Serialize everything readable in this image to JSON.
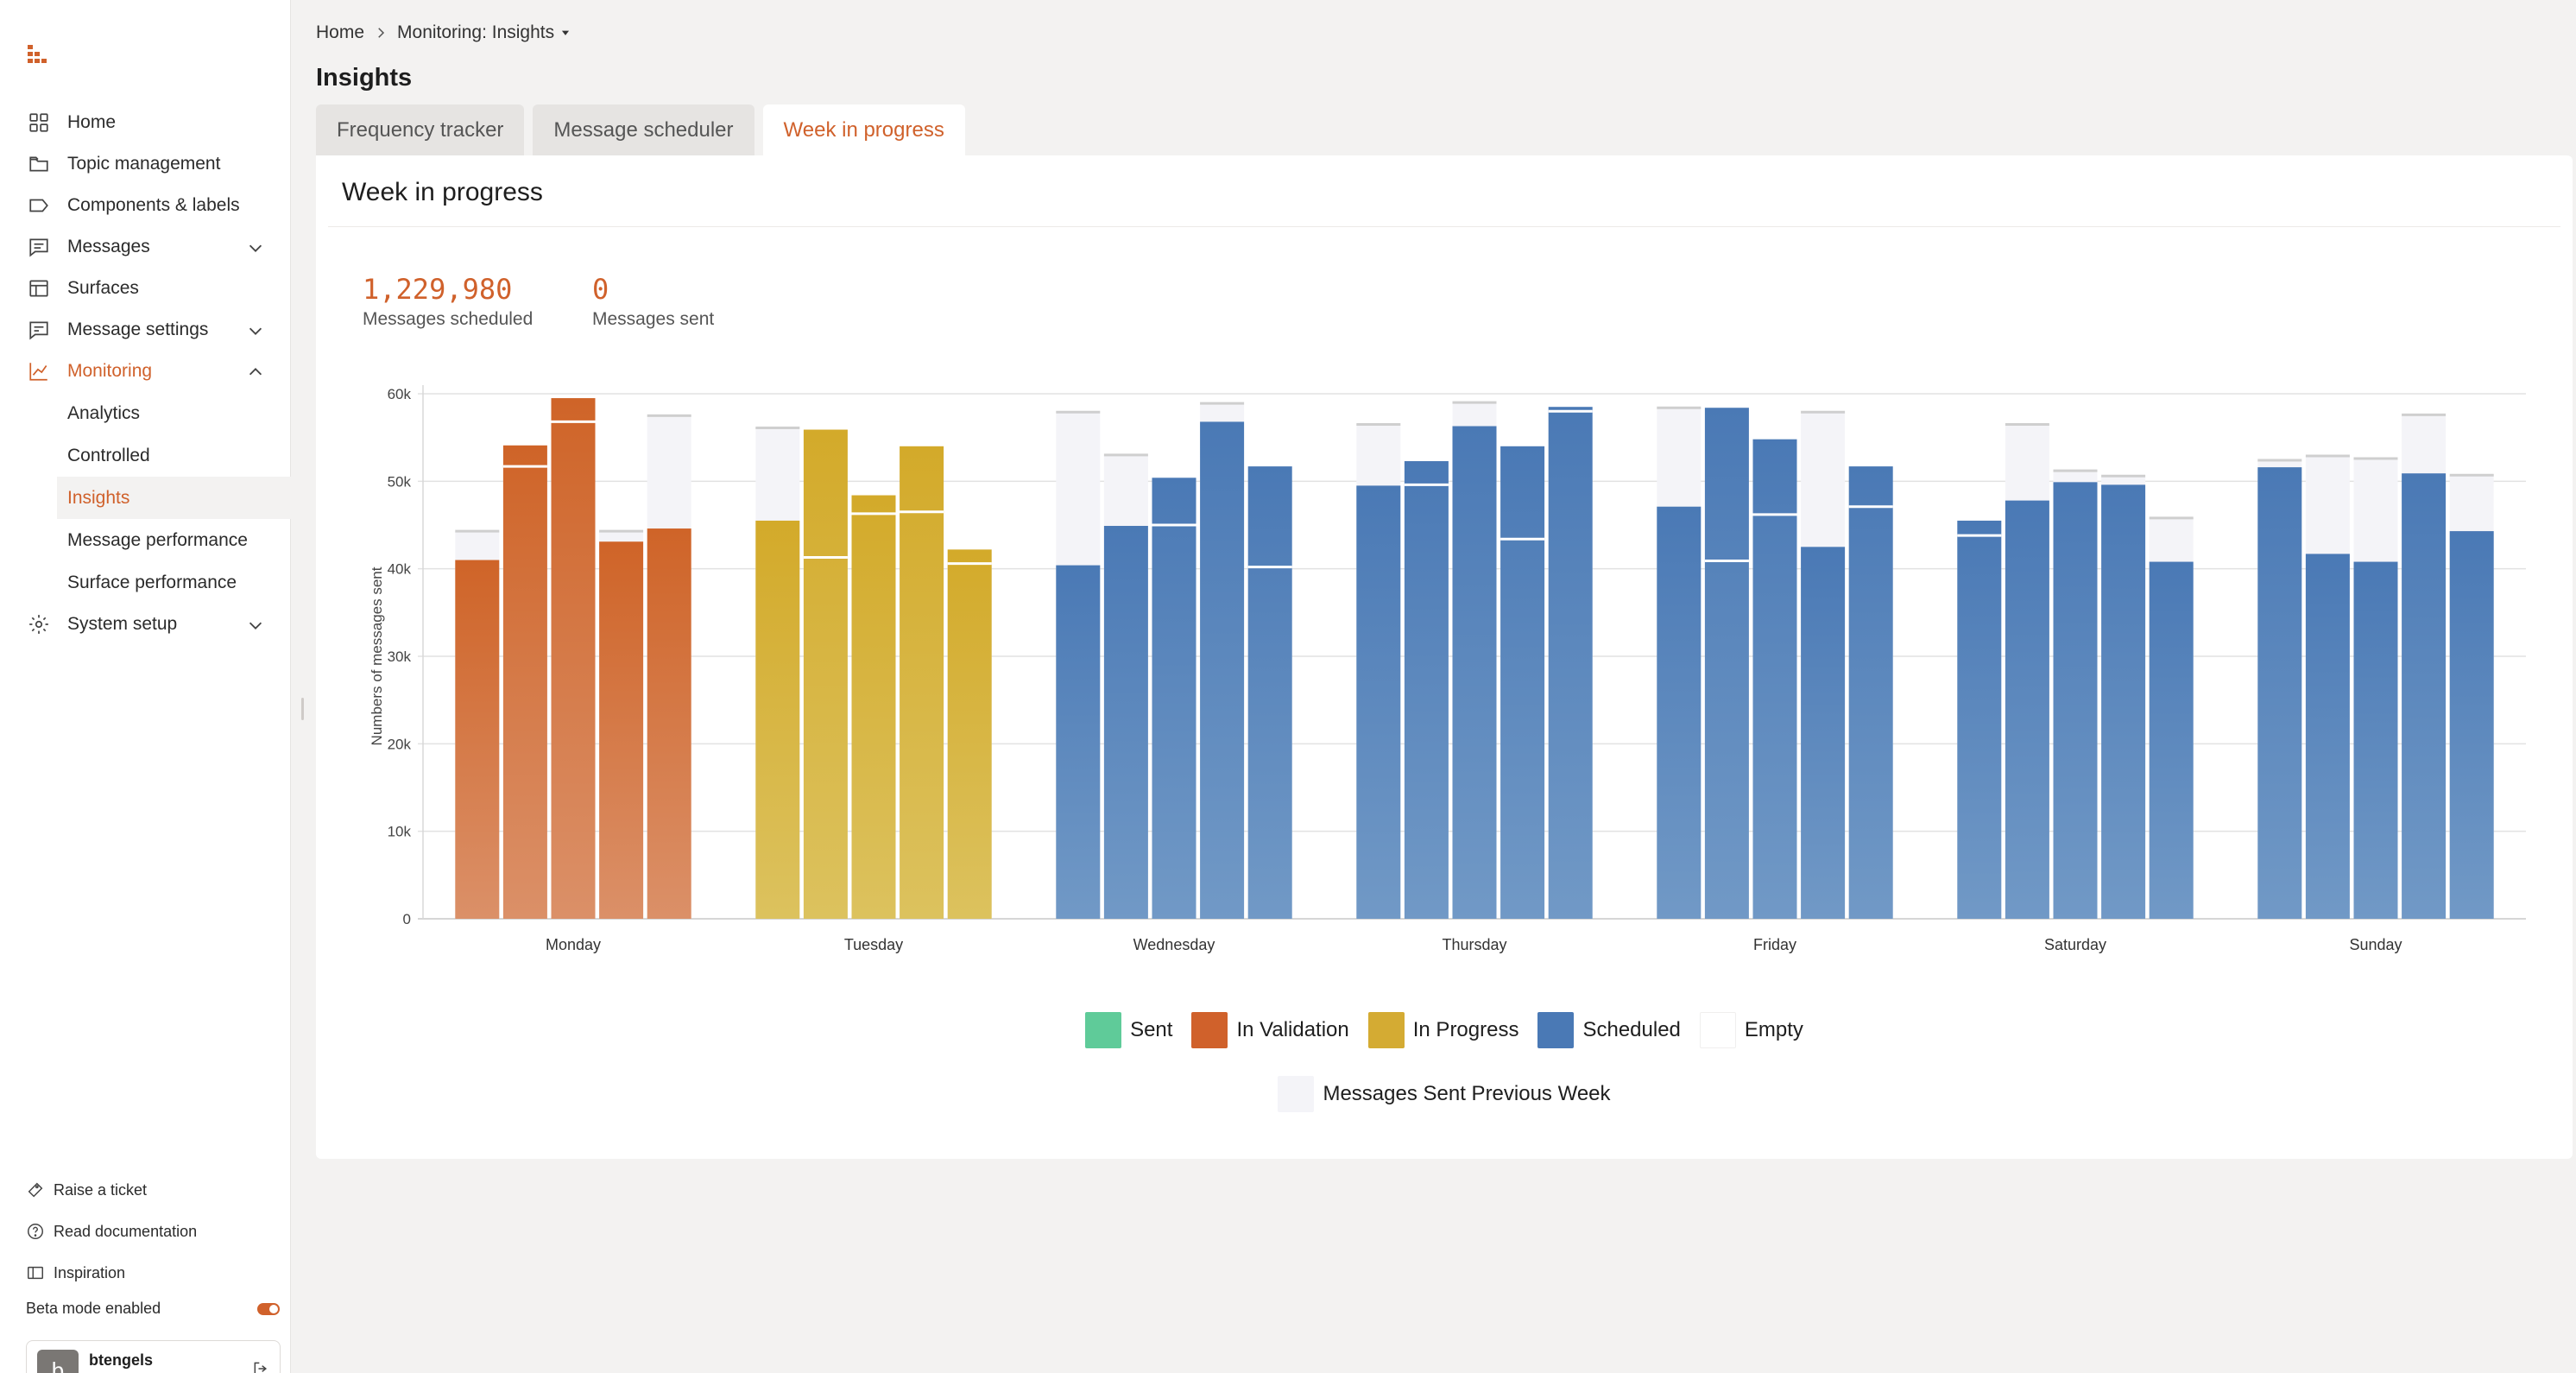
{
  "sidebar": {
    "nav": [
      {
        "label": "Home",
        "icon": "grid-icon"
      },
      {
        "label": "Topic management",
        "icon": "folder-icon"
      },
      {
        "label": "Components & labels",
        "icon": "label-icon"
      },
      {
        "label": "Messages",
        "icon": "message-icon",
        "expandable": true
      },
      {
        "label": "Surfaces",
        "icon": "layout-icon"
      },
      {
        "label": "Message settings",
        "icon": "message-settings-icon",
        "expandable": true
      },
      {
        "label": "Monitoring",
        "icon": "chart-line-icon",
        "expanded": true
      },
      {
        "label": "System setup",
        "icon": "gear-icon",
        "expandable": true
      }
    ],
    "monitoring_sub": [
      "Analytics",
      "Controlled",
      "Insights",
      "Message performance",
      "Surface performance"
    ],
    "footer": {
      "raise_ticket": "Raise a ticket",
      "read_docs": "Read documentation",
      "inspiration": "Inspiration",
      "beta": "Beta mode enabled",
      "user_name": "btengels",
      "avatar_letter": "b"
    }
  },
  "breadcrumb": {
    "home": "Home",
    "current": "Monitoring: Insights"
  },
  "page_title": "Insights",
  "tabs": [
    "Frequency tracker",
    "Message scheduler",
    "Week in progress"
  ],
  "panel": {
    "title": "Week in progress",
    "stats": [
      {
        "value": "1,229,980",
        "label": "Messages scheduled"
      },
      {
        "value": "0",
        "label": "Messages sent"
      }
    ]
  },
  "colors": {
    "accent": "#d0612b",
    "sent": "#5fcb99",
    "in_validation": "#d0612b",
    "in_progress": "#d4ab33",
    "scheduled": "#4a79b5",
    "empty": "#ffffff",
    "prev_week": "#f4f4f8"
  },
  "chart_data": {
    "type": "bar",
    "ylabel": "Numbers of messages sent",
    "ylim": [
      0,
      60000
    ],
    "yticks": [
      "0",
      "10k",
      "20k",
      "30k",
      "40k",
      "50k",
      "60k"
    ],
    "categories": [
      "Monday",
      "Tuesday",
      "Wednesday",
      "Thursday",
      "Friday",
      "Saturday",
      "Sunday"
    ],
    "bars_per_category": 5,
    "bars": [
      {
        "day": "Monday",
        "status": "in_validation",
        "value": 41000,
        "prev_week": 44300
      },
      {
        "day": "Monday",
        "status": "in_validation",
        "value": 54100,
        "prev_week": 51700
      },
      {
        "day": "Monday",
        "status": "in_validation",
        "value": 59500,
        "prev_week": 56800
      },
      {
        "day": "Monday",
        "status": "in_validation",
        "value": 43100,
        "prev_week": 44300
      },
      {
        "day": "Monday",
        "status": "in_validation",
        "value": 44600,
        "prev_week": 57500
      },
      {
        "day": "Tuesday",
        "status": "in_progress",
        "value": 45500,
        "prev_week": 56100
      },
      {
        "day": "Tuesday",
        "status": "in_progress",
        "value": 55900,
        "prev_week": 41300
      },
      {
        "day": "Tuesday",
        "status": "in_progress",
        "value": 48400,
        "prev_week": 46300
      },
      {
        "day": "Tuesday",
        "status": "in_progress",
        "value": 54000,
        "prev_week": 46500
      },
      {
        "day": "Tuesday",
        "status": "in_progress",
        "value": 42200,
        "prev_week": 40600
      },
      {
        "day": "Wednesday",
        "status": "scheduled",
        "value": 40400,
        "prev_week": 57900
      },
      {
        "day": "Wednesday",
        "status": "scheduled",
        "value": 44900,
        "prev_week": 53000
      },
      {
        "day": "Wednesday",
        "status": "scheduled",
        "value": 50400,
        "prev_week": 45000
      },
      {
        "day": "Wednesday",
        "status": "scheduled",
        "value": 56800,
        "prev_week": 58900
      },
      {
        "day": "Wednesday",
        "status": "scheduled",
        "value": 51700,
        "prev_week": 40200
      },
      {
        "day": "Thursday",
        "status": "scheduled",
        "value": 49500,
        "prev_week": 56500
      },
      {
        "day": "Thursday",
        "status": "scheduled",
        "value": 52300,
        "prev_week": 49600
      },
      {
        "day": "Thursday",
        "status": "scheduled",
        "value": 56300,
        "prev_week": 59000
      },
      {
        "day": "Thursday",
        "status": "scheduled",
        "value": 54000,
        "prev_week": 43400
      },
      {
        "day": "Thursday",
        "status": "scheduled",
        "value": 58500,
        "prev_week": 58000
      },
      {
        "day": "Friday",
        "status": "scheduled",
        "value": 47100,
        "prev_week": 58400
      },
      {
        "day": "Friday",
        "status": "scheduled",
        "value": 58400,
        "prev_week": 40900
      },
      {
        "day": "Friday",
        "status": "scheduled",
        "value": 54800,
        "prev_week": 46200
      },
      {
        "day": "Friday",
        "status": "scheduled",
        "value": 42500,
        "prev_week": 57900
      },
      {
        "day": "Friday",
        "status": "scheduled",
        "value": 51700,
        "prev_week": 47100
      },
      {
        "day": "Saturday",
        "status": "scheduled",
        "value": 45500,
        "prev_week": 43800
      },
      {
        "day": "Saturday",
        "status": "scheduled",
        "value": 47800,
        "prev_week": 56500
      },
      {
        "day": "Saturday",
        "status": "scheduled",
        "value": 49900,
        "prev_week": 51200
      },
      {
        "day": "Saturday",
        "status": "scheduled",
        "value": 49600,
        "prev_week": 50600
      },
      {
        "day": "Saturday",
        "status": "scheduled",
        "value": 40800,
        "prev_week": 45800
      },
      {
        "day": "Sunday",
        "status": "scheduled",
        "value": 51600,
        "prev_week": 52400
      },
      {
        "day": "Sunday",
        "status": "scheduled",
        "value": 41700,
        "prev_week": 52900
      },
      {
        "day": "Sunday",
        "status": "scheduled",
        "value": 40800,
        "prev_week": 52600
      },
      {
        "day": "Sunday",
        "status": "scheduled",
        "value": 50900,
        "prev_week": 57600
      },
      {
        "day": "Sunday",
        "status": "scheduled",
        "value": 44300,
        "prev_week": 50700
      }
    ],
    "legend": [
      {
        "key": "sent",
        "label": "Sent"
      },
      {
        "key": "in_validation",
        "label": "In Validation"
      },
      {
        "key": "in_progress",
        "label": "In Progress"
      },
      {
        "key": "scheduled",
        "label": "Scheduled"
      },
      {
        "key": "empty",
        "label": "Empty"
      },
      {
        "key": "prev_week",
        "label": "Messages Sent Previous Week"
      }
    ],
    "legend_position": "bottom",
    "grid": true
  }
}
